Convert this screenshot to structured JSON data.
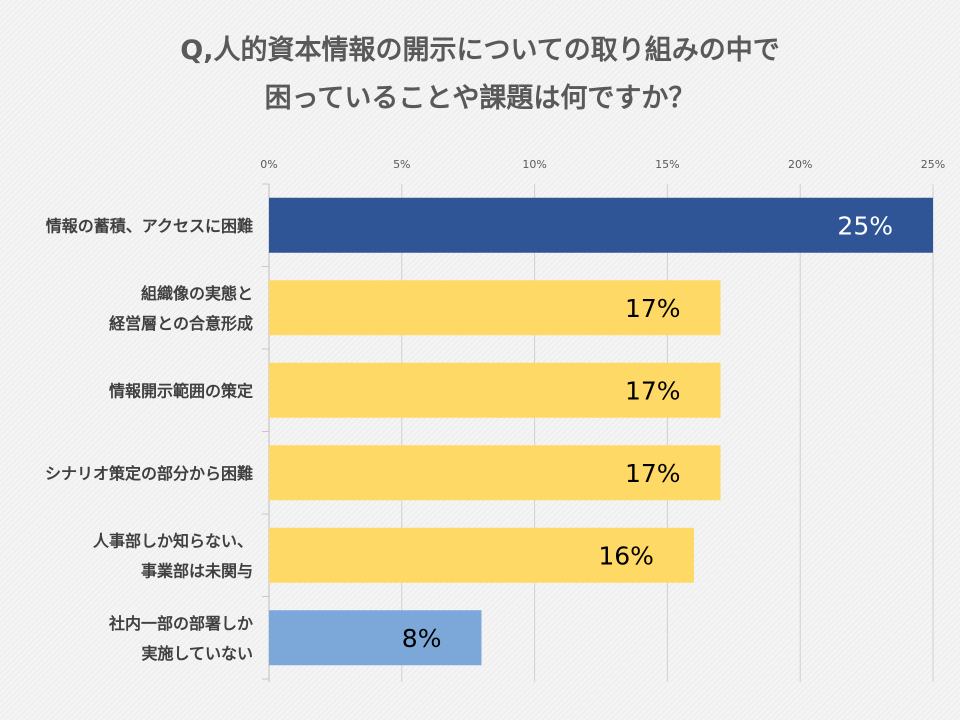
{
  "chart_data": {
    "type": "bar",
    "orientation": "horizontal",
    "title_lines": [
      "Q,人的資本情報の開示についての取り組みの中で",
      "困っていることや課題は何ですか？"
    ],
    "categories": [
      [
        "情報の蓄積、アクセスに困難"
      ],
      [
        "組織像の実態と",
        "経営層との合意形成"
      ],
      [
        "情報開示範囲の策定"
      ],
      [
        "シナリオ策定の部分から困難"
      ],
      [
        "人事部しか知らない、",
        "事業部は未関与"
      ],
      [
        "社内一部の部署しか",
        "実施していない"
      ]
    ],
    "values": [
      25,
      17,
      17,
      17,
      16,
      8
    ],
    "data_labels": [
      "25%",
      "17%",
      "17%",
      "17%",
      "16%",
      "8%"
    ],
    "bar_colors": [
      "#2F5597",
      "#FFD966",
      "#FFD966",
      "#FFD966",
      "#FFD966",
      "#7BA7D9"
    ],
    "label_colors": [
      "#ffffff",
      "#000000",
      "#000000",
      "#000000",
      "#000000",
      "#000000"
    ],
    "ticks": [
      0,
      5,
      10,
      15,
      20,
      25
    ],
    "tick_labels": [
      "0%",
      "5%",
      "10%",
      "15%",
      "20%",
      "25%"
    ],
    "xlim": [
      0,
      25
    ],
    "grid": true,
    "xaxis_position": "top"
  }
}
